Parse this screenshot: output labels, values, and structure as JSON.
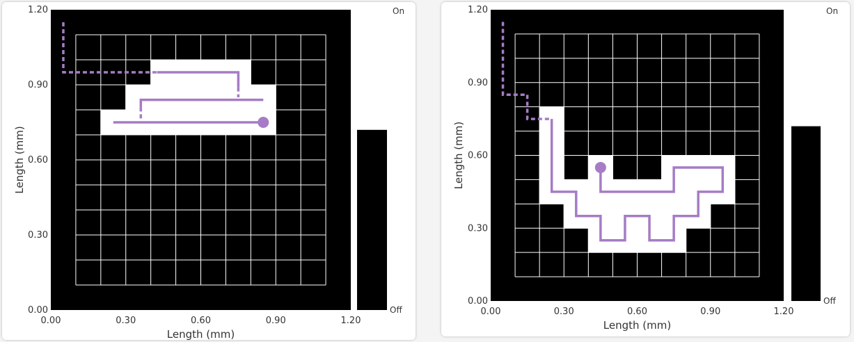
{
  "colors": {
    "field": "#000000",
    "grid": "#ffffff",
    "path": "#a57cc5",
    "text": "#333333"
  },
  "chart_data": [
    {
      "type": "heatmap",
      "xlabel": "Length (mm)",
      "ylabel": "Length (mm)",
      "xlim": [
        0,
        1.2
      ],
      "ylim": [
        0,
        1.2
      ],
      "xticks": [
        "0.00",
        "0.30",
        "0.60",
        "0.90",
        "1.20"
      ],
      "yticks": [
        "0.00",
        "0.30",
        "0.60",
        "0.90",
        "1.20"
      ],
      "grid_extent": [
        0.1,
        1.1
      ],
      "cell_size": 0.1,
      "colorbar": {
        "max_label": "On",
        "min_label": "Off",
        "level": 0.6
      },
      "on_cells": [
        [
          0.4,
          0.9
        ],
        [
          0.5,
          0.9
        ],
        [
          0.6,
          0.9
        ],
        [
          0.7,
          0.9
        ],
        [
          0.3,
          0.8
        ],
        [
          0.4,
          0.8
        ],
        [
          0.5,
          0.8
        ],
        [
          0.6,
          0.8
        ],
        [
          0.7,
          0.8
        ],
        [
          0.8,
          0.8
        ],
        [
          0.2,
          0.7
        ],
        [
          0.3,
          0.7
        ],
        [
          0.4,
          0.7
        ],
        [
          0.5,
          0.7
        ],
        [
          0.6,
          0.7
        ],
        [
          0.7,
          0.7
        ],
        [
          0.8,
          0.7
        ]
      ],
      "path_dashed": [
        [
          0.05,
          1.15
        ],
        [
          0.05,
          0.95
        ],
        [
          0.425,
          0.95
        ]
      ],
      "path_solid": [
        [
          0.425,
          0.95
        ],
        [
          0.75,
          0.95
        ],
        [
          0.75,
          0.89
        ]
      ],
      "path_dashed2": [
        [
          0.75,
          0.89
        ],
        [
          0.75,
          0.85
        ]
      ],
      "path_solid2": [
        [
          0.85,
          0.84
        ],
        [
          0.36,
          0.84
        ],
        [
          0.36,
          0.81
        ]
      ],
      "path_dashed3": [
        [
          0.36,
          0.81
        ],
        [
          0.36,
          0.76
        ]
      ],
      "path_solid3": [
        [
          0.25,
          0.75
        ],
        [
          0.85,
          0.75
        ]
      ],
      "end_point": [
        0.85,
        0.75
      ]
    },
    {
      "type": "heatmap",
      "xlabel": "Length (mm)",
      "ylabel": "Length (mm)",
      "xlim": [
        0,
        1.2
      ],
      "ylim": [
        0,
        1.2
      ],
      "xticks": [
        "0.00",
        "0.30",
        "0.60",
        "0.90",
        "1.20"
      ],
      "yticks": [
        "0.00",
        "0.30",
        "0.60",
        "0.90",
        "1.20"
      ],
      "grid_extent": [
        0.1,
        1.1
      ],
      "cell_size": 0.1,
      "colorbar": {
        "max_label": "On",
        "min_label": "Off",
        "level": 0.6
      },
      "on_cells": [
        [
          0.2,
          0.7
        ],
        [
          0.2,
          0.6
        ],
        [
          0.2,
          0.5
        ],
        [
          0.4,
          0.5
        ],
        [
          0.7,
          0.5
        ],
        [
          0.8,
          0.5
        ],
        [
          0.9,
          0.5
        ],
        [
          0.2,
          0.4
        ],
        [
          0.3,
          0.4
        ],
        [
          0.4,
          0.4
        ],
        [
          0.5,
          0.4
        ],
        [
          0.6,
          0.4
        ],
        [
          0.7,
          0.4
        ],
        [
          0.8,
          0.4
        ],
        [
          0.9,
          0.4
        ],
        [
          0.3,
          0.3
        ],
        [
          0.4,
          0.3
        ],
        [
          0.5,
          0.3
        ],
        [
          0.6,
          0.3
        ],
        [
          0.7,
          0.3
        ],
        [
          0.8,
          0.3
        ],
        [
          0.4,
          0.2
        ],
        [
          0.5,
          0.2
        ],
        [
          0.6,
          0.2
        ],
        [
          0.7,
          0.2
        ]
      ],
      "path_dashed": [
        [
          0.05,
          1.15
        ],
        [
          0.05,
          0.85
        ],
        [
          0.15,
          0.85
        ],
        [
          0.15,
          0.75
        ],
        [
          0.25,
          0.75
        ]
      ],
      "path_solid": [
        [
          0.25,
          0.75
        ],
        [
          0.25,
          0.45
        ],
        [
          0.35,
          0.45
        ],
        [
          0.35,
          0.35
        ],
        [
          0.45,
          0.35
        ],
        [
          0.45,
          0.25
        ],
        [
          0.55,
          0.25
        ],
        [
          0.55,
          0.35
        ],
        [
          0.65,
          0.35
        ],
        [
          0.65,
          0.25
        ],
        [
          0.75,
          0.25
        ],
        [
          0.75,
          0.35
        ],
        [
          0.85,
          0.35
        ],
        [
          0.85,
          0.45
        ],
        [
          0.95,
          0.45
        ],
        [
          0.95,
          0.55
        ],
        [
          0.75,
          0.55
        ],
        [
          0.75,
          0.45
        ],
        [
          0.45,
          0.45
        ],
        [
          0.45,
          0.55
        ]
      ],
      "end_point": [
        0.45,
        0.55
      ]
    }
  ]
}
